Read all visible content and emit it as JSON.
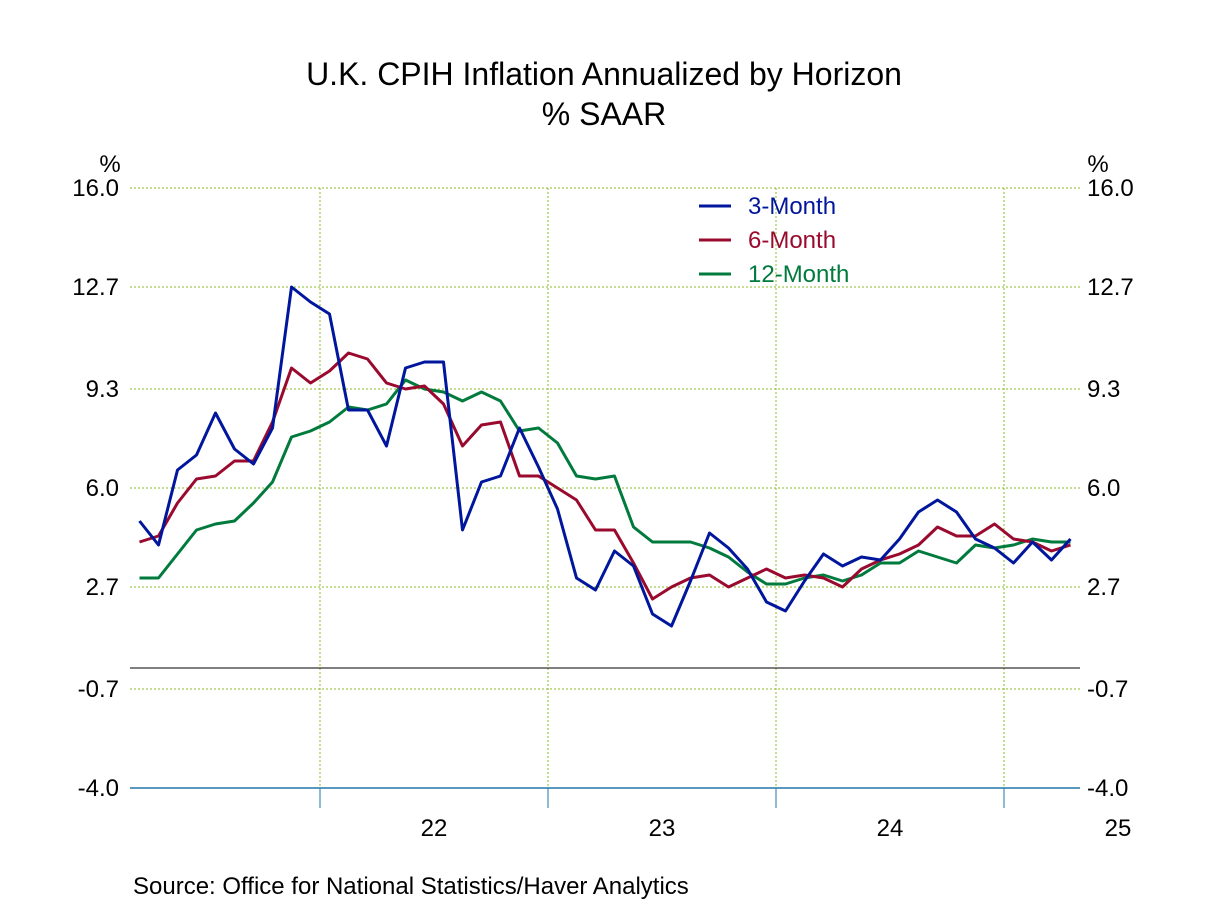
{
  "chart_data": {
    "type": "line",
    "title": "U.K. CPIH Inflation Annualized by Horizon",
    "subtitle": "% SAAR",
    "ylabel_left": "%",
    "ylabel_right": "%",
    "ylim": [
      -4.0,
      16.0
    ],
    "yticks": [
      "16.0",
      "12.7",
      "9.3",
      "6.0",
      "2.7",
      "-0.7",
      "-4.0"
    ],
    "ytick_values": [
      16.0,
      12.7,
      9.3,
      6.0,
      2.7,
      -0.7,
      -4.0
    ],
    "x_start": "2021-03",
    "x_end": "2025-04",
    "xticks": [
      {
        "label": "22",
        "position": "2022-07"
      },
      {
        "label": "23",
        "position": "2023-07"
      },
      {
        "label": "24",
        "position": "2024-07"
      },
      {
        "label": "25",
        "position": "2025-07"
      }
    ],
    "x_gridlines": [
      "2022-01",
      "2023-01",
      "2024-01",
      "2025-01"
    ],
    "grid": true,
    "zero_line": true,
    "legend_position": "top-right",
    "x": [
      "2021-03",
      "2021-04",
      "2021-05",
      "2021-06",
      "2021-07",
      "2021-08",
      "2021-09",
      "2021-10",
      "2021-11",
      "2021-12",
      "2022-01",
      "2022-02",
      "2022-03",
      "2022-04",
      "2022-05",
      "2022-06",
      "2022-07",
      "2022-08",
      "2022-09",
      "2022-10",
      "2022-11",
      "2022-12",
      "2023-01",
      "2023-02",
      "2023-03",
      "2023-04",
      "2023-05",
      "2023-06",
      "2023-07",
      "2023-08",
      "2023-09",
      "2023-10",
      "2023-11",
      "2023-12",
      "2024-01",
      "2024-02",
      "2024-03",
      "2024-04",
      "2024-05",
      "2024-06",
      "2024-07",
      "2024-08",
      "2024-09",
      "2024-10",
      "2024-11",
      "2024-12",
      "2025-01",
      "2025-02",
      "2025-03",
      "2025-04"
    ],
    "series": [
      {
        "name": "3-Month",
        "color": "#00169c",
        "values": [
          4.9,
          4.1,
          6.6,
          7.1,
          8.5,
          7.3,
          6.8,
          8.0,
          12.7,
          12.2,
          11.8,
          8.6,
          8.6,
          7.4,
          10.0,
          10.2,
          10.2,
          4.6,
          6.2,
          6.4,
          8.0,
          6.7,
          5.3,
          3.0,
          2.6,
          3.9,
          3.4,
          1.8,
          1.4,
          2.9,
          4.5,
          4.0,
          3.3,
          2.2,
          1.9,
          2.9,
          3.8,
          3.4,
          3.7,
          3.6,
          4.3,
          5.2,
          5.6,
          5.2,
          4.3,
          4.0,
          3.5,
          4.2,
          3.6,
          4.3
        ]
      },
      {
        "name": "6-Month",
        "color": "#990a2e",
        "values": [
          4.2,
          4.4,
          5.5,
          6.3,
          6.4,
          6.9,
          6.9,
          8.2,
          10.0,
          9.5,
          9.9,
          10.5,
          10.3,
          9.5,
          9.3,
          9.4,
          8.8,
          7.4,
          8.1,
          8.2,
          6.4,
          6.4,
          6.0,
          5.6,
          4.6,
          4.6,
          3.5,
          2.3,
          2.7,
          3.0,
          3.1,
          2.7,
          3.0,
          3.3,
          3.0,
          3.1,
          3.0,
          2.7,
          3.3,
          3.6,
          3.8,
          4.1,
          4.7,
          4.4,
          4.4,
          4.8,
          4.3,
          4.2,
          3.9,
          4.1
        ]
      },
      {
        "name": "12-Month",
        "color": "#007a3d",
        "values": [
          3.0,
          3.0,
          3.8,
          4.6,
          4.8,
          4.9,
          5.5,
          6.2,
          7.7,
          7.9,
          8.2,
          8.7,
          8.6,
          8.8,
          9.6,
          9.3,
          9.2,
          8.9,
          9.2,
          8.9,
          7.9,
          8.0,
          7.5,
          6.4,
          6.3,
          6.4,
          4.7,
          4.2,
          4.2,
          4.2,
          4.0,
          3.7,
          3.2,
          2.8,
          2.8,
          3.0,
          3.1,
          2.9,
          3.1,
          3.5,
          3.5,
          3.9,
          3.7,
          3.5,
          4.1,
          4.0,
          4.1,
          4.3,
          4.2,
          4.2
        ]
      }
    ],
    "source": "Source:  Office for National Statistics/Haver Analytics"
  }
}
